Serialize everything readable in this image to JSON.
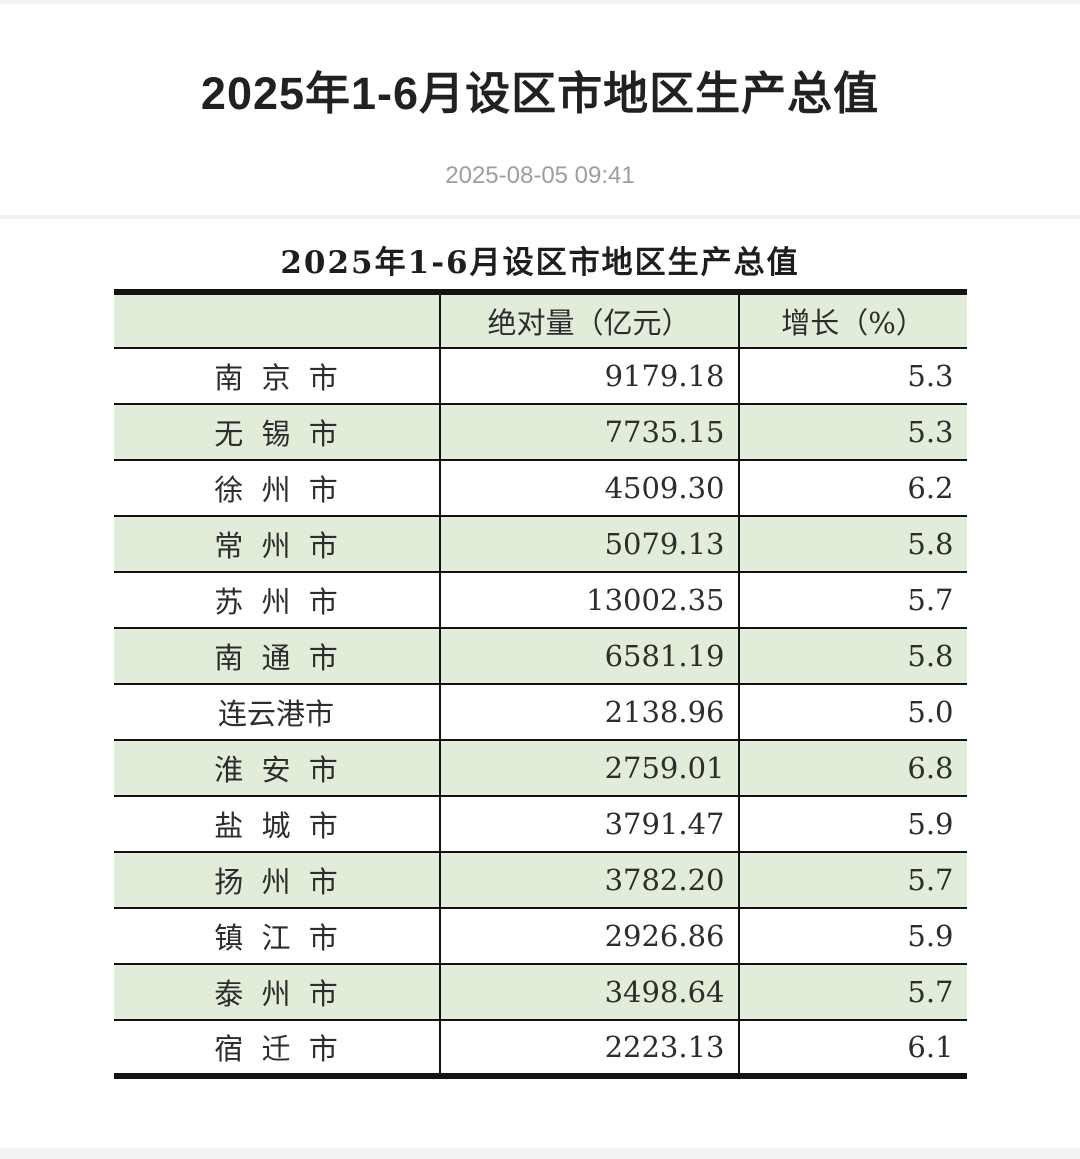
{
  "page": {
    "title": "2025年1-6月设区市地区生产总值",
    "published": "2025-08-05 09:41"
  },
  "table": {
    "title": "2025年1-6月设区市地区生产总值",
    "columns": {
      "city": "",
      "absolute": "绝对量（亿元）",
      "growth": "增长（%）"
    },
    "rows": [
      {
        "city": "南 京 市",
        "value": "9179.18",
        "growth": "5.3"
      },
      {
        "city": "无 锡 市",
        "value": "7735.15",
        "growth": "5.3"
      },
      {
        "city": "徐 州 市",
        "value": "4509.30",
        "growth": "6.2"
      },
      {
        "city": "常 州 市",
        "value": "5079.13",
        "growth": "5.8"
      },
      {
        "city": "苏 州 市",
        "value": "13002.35",
        "growth": "5.7"
      },
      {
        "city": "南 通 市",
        "value": "6581.19",
        "growth": "5.8"
      },
      {
        "city": "连云港市",
        "value": "2138.96",
        "growth": "5.0"
      },
      {
        "city": "淮 安 市",
        "value": "2759.01",
        "growth": "6.8"
      },
      {
        "city": "盐 城 市",
        "value": "3791.47",
        "growth": "5.9"
      },
      {
        "city": "扬 州 市",
        "value": "3782.20",
        "growth": "5.7"
      },
      {
        "city": "镇 江 市",
        "value": "2926.86",
        "growth": "5.9"
      },
      {
        "city": "泰 州 市",
        "value": "3498.64",
        "growth": "5.7"
      },
      {
        "city": "宿 迁 市",
        "value": "2223.13",
        "growth": "6.1"
      }
    ]
  },
  "colors": {
    "band_green": "#e1edd9",
    "border": "#141414",
    "date_gray": "#9e9e9e",
    "strip_gray": "#f2f2f2"
  }
}
